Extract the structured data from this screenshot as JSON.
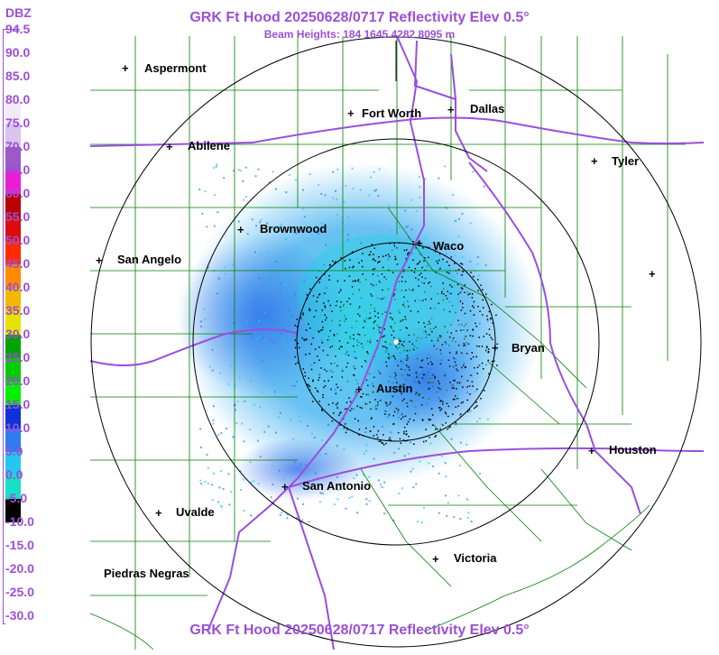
{
  "header": {
    "title": "GRK Ft Hood 20250628/0717 Reflectivity Elev 0.5°",
    "beam_heights": "Beam Heights: 184 1645 4282 8095 m"
  },
  "footer": {
    "title": "GRK Ft Hood 20250628/0717 Reflectivity Elev 0.5°"
  },
  "legend": {
    "unit": "DBZ",
    "levels": [
      {
        "label": "94.5",
        "color": "#ffffff"
      },
      {
        "label": "90.0",
        "color": "#ffffff"
      },
      {
        "label": "85.0",
        "color": "#ffffff"
      },
      {
        "label": "80.0",
        "color": "#f2eaf8"
      },
      {
        "label": "75.0",
        "color": "#d9c4ee"
      },
      {
        "label": "70.0",
        "color": "#9b59c9"
      },
      {
        "label": "65.0",
        "color": "#ee1bd5"
      },
      {
        "label": "60.0",
        "color": "#b90000"
      },
      {
        "label": "55.0",
        "color": "#de0b0b"
      },
      {
        "label": "50.0",
        "color": "#ff2a00"
      },
      {
        "label": "45.0",
        "color": "#ff8b00"
      },
      {
        "label": "40.0",
        "color": "#f3b800"
      },
      {
        "label": "35.0",
        "color": "#e8e200"
      },
      {
        "label": "30.0",
        "color": "#00a400"
      },
      {
        "label": "25.0",
        "color": "#00cd00"
      },
      {
        "label": "20.0",
        "color": "#00f000"
      },
      {
        "label": "15.0",
        "color": "#0d33d8"
      },
      {
        "label": "10.0",
        "color": "#2f7cf0"
      },
      {
        "label": "5.0",
        "color": "#23c7f0"
      },
      {
        "label": "0.0",
        "color": "#18e0c8"
      },
      {
        "label": "-5.0",
        "color": "#000000"
      },
      {
        "label": "-10.0",
        "color": "#ffffff"
      },
      {
        "label": "-15.0",
        "color": "#ffffff"
      },
      {
        "label": "-20.0",
        "color": "#ffffff"
      },
      {
        "label": "-25.0",
        "color": "#ffffff"
      },
      {
        "label": "-30.0",
        "color": "#ffffff"
      }
    ]
  },
  "cities": [
    {
      "name": "Aspermont"
    },
    {
      "name": "Fort Worth"
    },
    {
      "name": "Dallas"
    },
    {
      "name": "Abilene"
    },
    {
      "name": "Tyler"
    },
    {
      "name": "Brownwood"
    },
    {
      "name": "Waco"
    },
    {
      "name": "San Angelo"
    },
    {
      "name": "Bryan"
    },
    {
      "name": "Austin"
    },
    {
      "name": "Houston"
    },
    {
      "name": "San Antonio"
    },
    {
      "name": "Uvalde"
    },
    {
      "name": "Victoria"
    },
    {
      "name": "Piedras Negras"
    },
    {
      "name": ""
    }
  ],
  "colors": {
    "title": "#9b4fd6",
    "county_lines": "#008000",
    "highways": "#9a4ee0",
    "range_rings": "#000000"
  }
}
